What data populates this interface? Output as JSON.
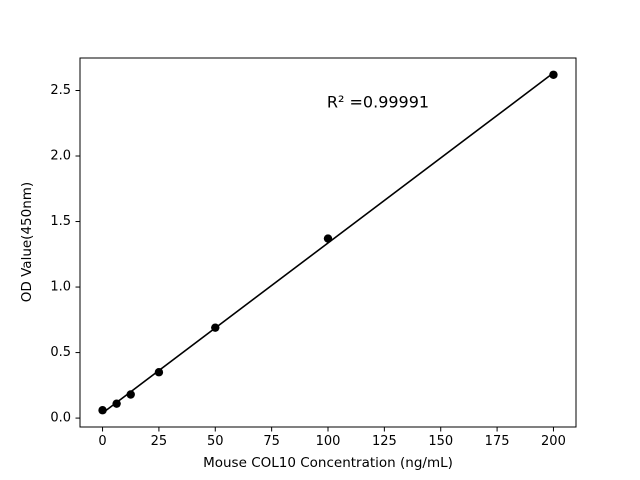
{
  "chart_data": {
    "type": "scatter",
    "title": "",
    "xlabel": "Mouse COL10 Concentration (ng/mL)",
    "ylabel": "OD Value(450nm)",
    "annotation": "R² =0.99991",
    "x": [
      0,
      6.25,
      12.5,
      25,
      50,
      100,
      200
    ],
    "y": [
      0.06,
      0.11,
      0.18,
      0.35,
      0.69,
      1.37,
      2.62
    ],
    "x_ticks": [
      0,
      25,
      50,
      75,
      100,
      125,
      150,
      175,
      200
    ],
    "y_ticks": [
      "0.0",
      "0.5",
      "1.0",
      "1.5",
      "2.0",
      "2.5"
    ],
    "xlim": [
      -10,
      210
    ],
    "ylim": [
      -0.068,
      2.748
    ],
    "fit": "linear",
    "legend": "none",
    "grid": false,
    "marker_color": "#000000",
    "line_color": "#000000",
    "spine_color": "#000000"
  }
}
